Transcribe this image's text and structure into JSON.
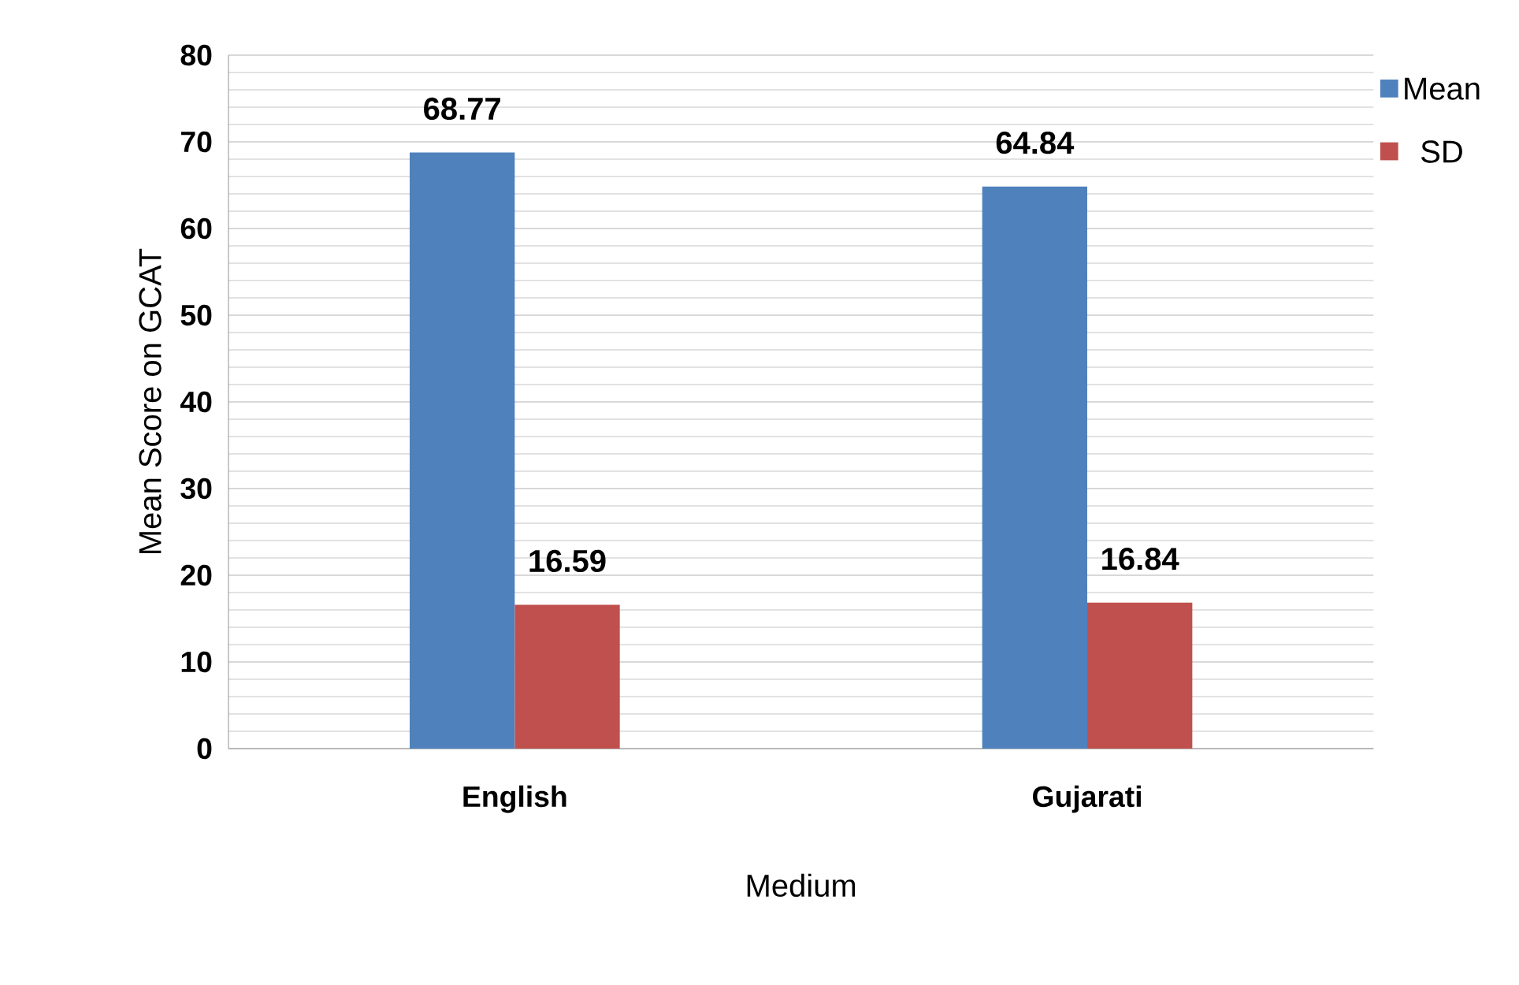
{
  "chart_data": {
    "type": "bar",
    "xlabel": "Medium",
    "ylabel": "Mean Score on GCAT",
    "categories": [
      "English",
      "Gujarati"
    ],
    "series": [
      {
        "name": "Mean",
        "color": "#4f81bd",
        "values": [
          68.77,
          64.84
        ]
      },
      {
        "name": "SD",
        "color": "#c0504d",
        "values": [
          16.59,
          16.84
        ]
      }
    ],
    "ylim": [
      0,
      80
    ],
    "yticks": [
      0,
      10,
      20,
      30,
      40,
      50,
      60,
      70,
      80
    ],
    "grid": "y",
    "legend": "right",
    "data_labels": true
  }
}
